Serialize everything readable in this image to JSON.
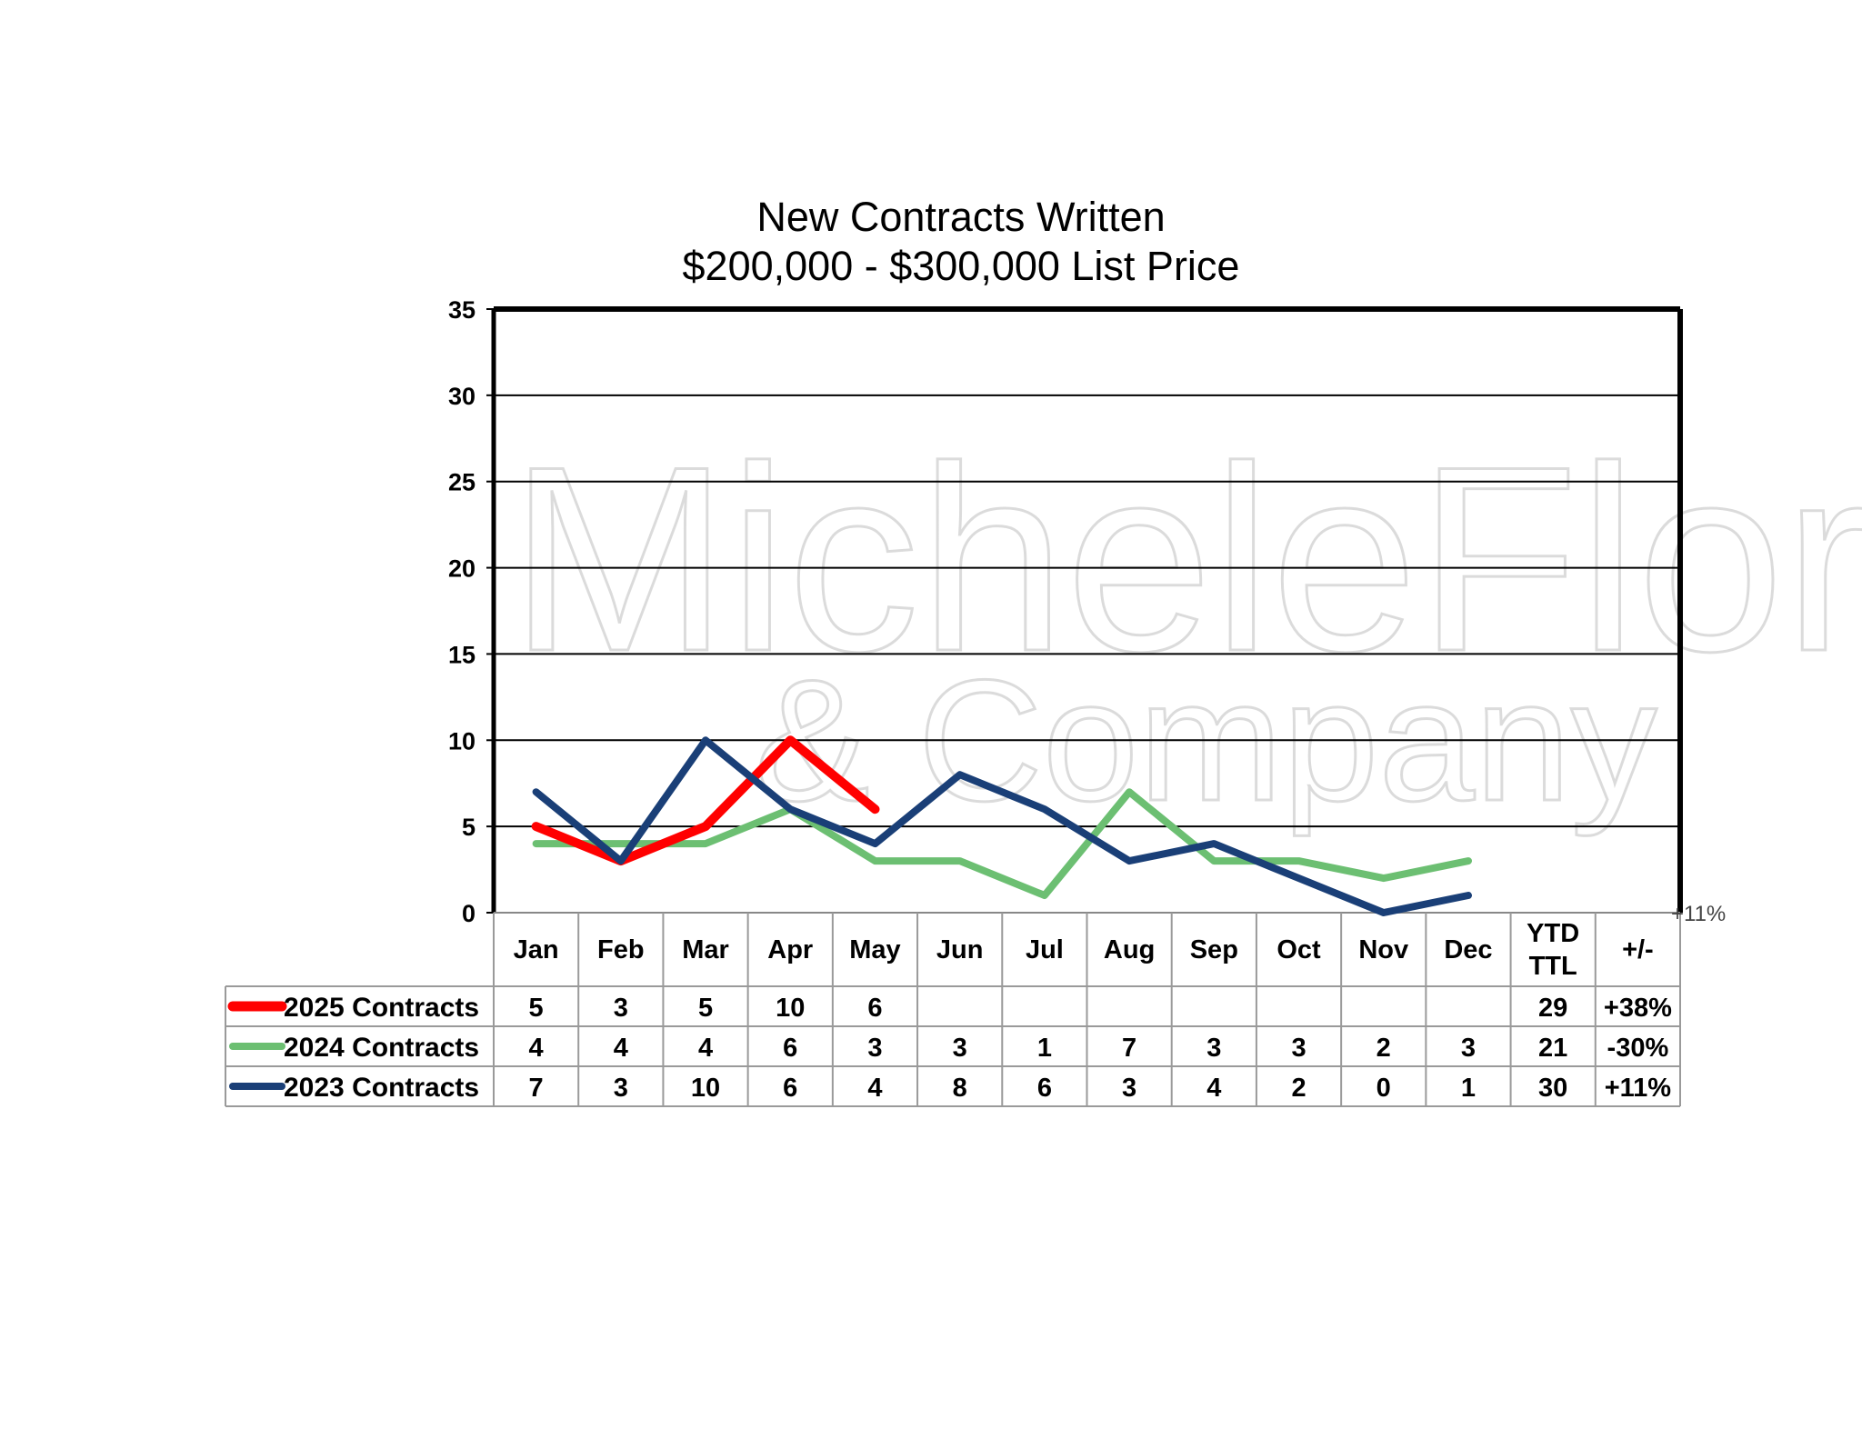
{
  "chart_data": {
    "type": "line",
    "title": "New Contracts Written",
    "subtitle": "$200,000 - $300,000 List Price",
    "categories": [
      "Jan",
      "Feb",
      "Mar",
      "Apr",
      "May",
      "Jun",
      "Jul",
      "Aug",
      "Sep",
      "Oct",
      "Nov",
      "Dec"
    ],
    "ylim": [
      0,
      35
    ],
    "yticks": [
      0,
      5,
      10,
      15,
      20,
      25,
      30,
      35
    ],
    "grid": true,
    "legend": "data-table-left",
    "table_extra_headers": [
      "YTD\nTTL",
      "+/-"
    ],
    "series": [
      {
        "name": "2025 Contracts",
        "color": "#ff0000",
        "values": [
          5,
          3,
          5,
          10,
          6,
          null,
          null,
          null,
          null,
          null,
          null,
          null
        ],
        "ytd": "29",
        "change": "+38%"
      },
      {
        "name": "2024 Contracts",
        "color": "#6cbf72",
        "values": [
          4,
          4,
          4,
          6,
          3,
          3,
          1,
          7,
          3,
          3,
          2,
          3
        ],
        "ytd": "21",
        "change": "-30%"
      },
      {
        "name": "2023 Contracts",
        "color": "#1a3f77",
        "values": [
          7,
          3,
          10,
          6,
          4,
          8,
          6,
          3,
          4,
          2,
          0,
          1
        ],
        "ytd": "30",
        "change": "+11%"
      }
    ],
    "annotations": [
      "+11%"
    ]
  },
  "watermark": {
    "line1": "MicheleFlory",
    "line2": "& Company"
  }
}
